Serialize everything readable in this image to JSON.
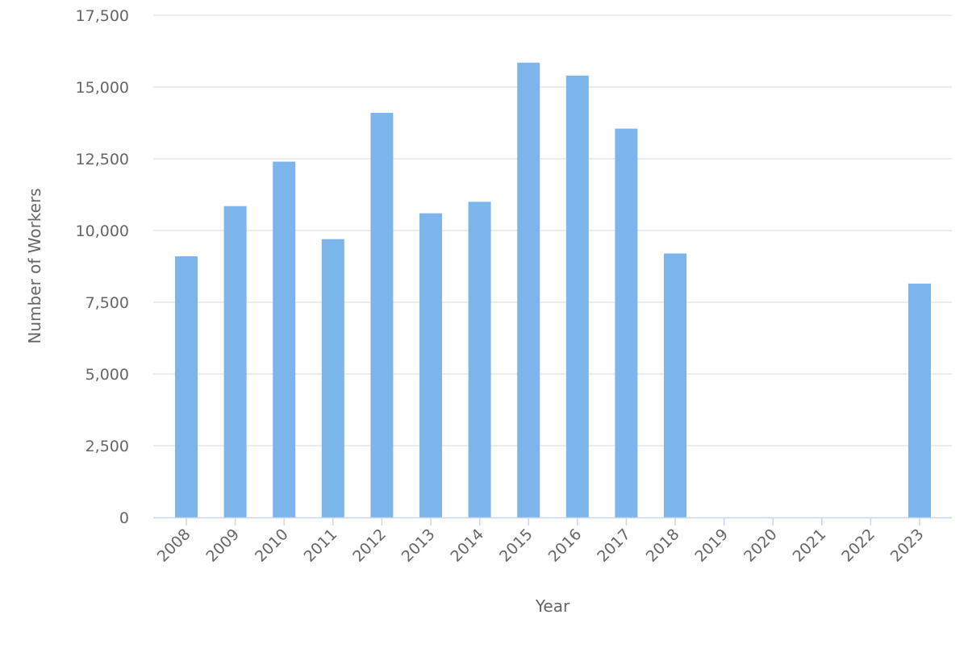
{
  "chart_data": {
    "type": "bar",
    "title": "",
    "xlabel": "Year",
    "ylabel": "Number of Workers",
    "categories": [
      "2008",
      "2009",
      "2010",
      "2011",
      "2012",
      "2013",
      "2014",
      "2015",
      "2016",
      "2017",
      "2018",
      "2019",
      "2020",
      "2021",
      "2022",
      "2023"
    ],
    "values": [
      9100,
      10850,
      12400,
      9700,
      14100,
      10600,
      11000,
      15850,
      15400,
      13550,
      9200,
      0,
      0,
      0,
      0,
      8150
    ],
    "ylim": [
      0,
      17500
    ],
    "yticks": [
      0,
      2500,
      5000,
      7500,
      10000,
      12500,
      15000,
      17500
    ],
    "ytick_labels": [
      "0",
      "2,500",
      "5,000",
      "7,500",
      "10,000",
      "12,500",
      "15,000",
      "17,500"
    ],
    "grid": true,
    "legend": "none",
    "colors": {
      "bar": "#7cb5ec",
      "grid": "#e6e6e6",
      "axis": "#ccd6eb",
      "text": "#666666"
    }
  }
}
